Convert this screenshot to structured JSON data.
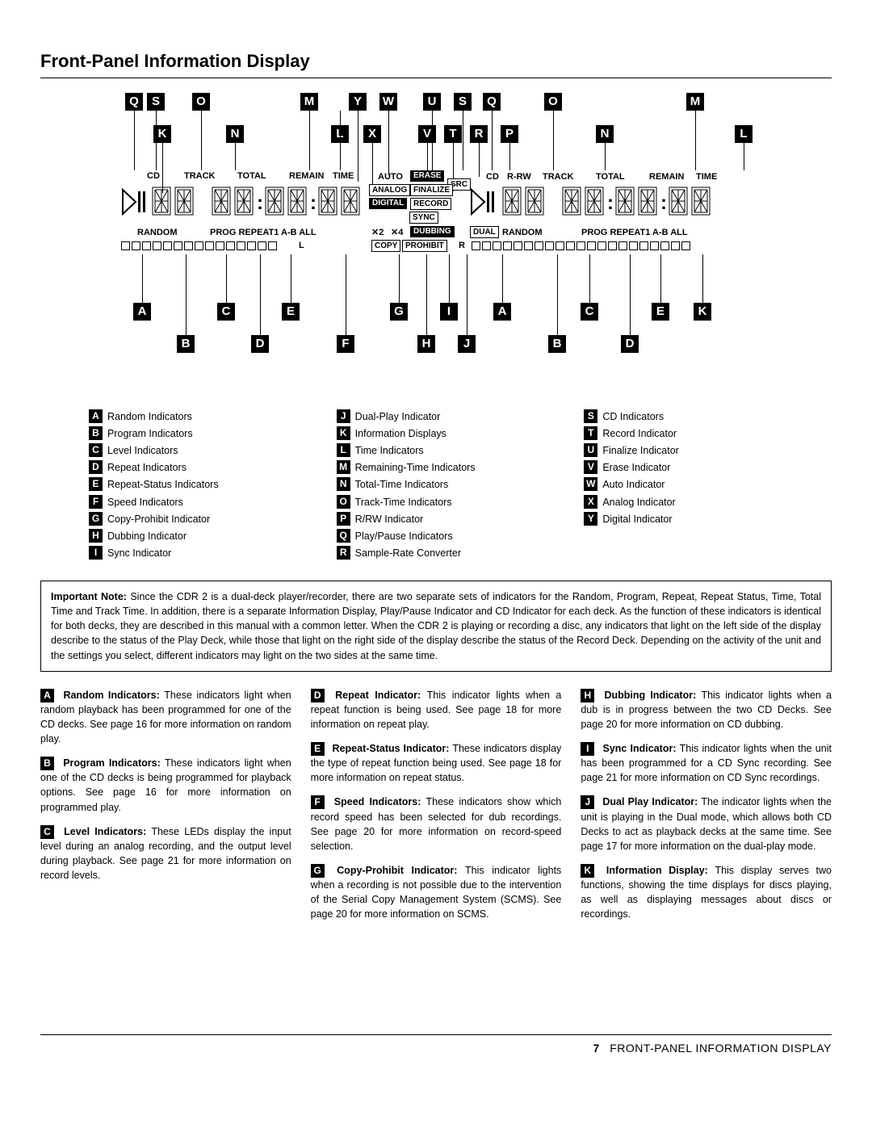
{
  "title": "Front-Panel Information Display",
  "diagram": {
    "top_callouts_left": [
      "Q",
      "S",
      "O",
      "M",
      "Y",
      "W"
    ],
    "top_callouts_right": [
      "U",
      "S",
      "Q",
      "O",
      "M"
    ],
    "mid_callouts_left": [
      "K",
      "N",
      "L",
      "X"
    ],
    "mid_callouts_right": [
      "V",
      "T",
      "R",
      "P",
      "N",
      "L"
    ],
    "bottom_upper_left": [
      "A",
      "C",
      "E",
      "G",
      "I"
    ],
    "bottom_upper_right": [
      "A",
      "C",
      "E",
      "K"
    ],
    "bottom_lower_left": [
      "B",
      "D",
      "F",
      "H",
      "J"
    ],
    "bottom_lower_right": [
      "B",
      "D"
    ],
    "labels_left": [
      "CD",
      "TRACK",
      "TOTAL",
      "REMAIN",
      "TIME"
    ],
    "labels_right": [
      "CD",
      "R-RW",
      "TRACK",
      "TOTAL",
      "REMAIN",
      "TIME"
    ],
    "center_boxes_r1": [
      "AUTO",
      "ERASE"
    ],
    "center_boxes_r2": [
      "ANALOG",
      "FINALIZE"
    ],
    "center_boxes_r3": [
      "DIGITAL",
      "RECORD"
    ],
    "center_boxes_r4": [
      "SYNC"
    ],
    "center_src": "SRC",
    "speed": [
      "✕2",
      "✕4"
    ],
    "dubbing": "DUBBING",
    "dual": "DUAL",
    "copy_prohibit": [
      "COPY",
      "PROHIBIT"
    ],
    "random": "RANDOM",
    "prog_repeat": "PROG REPEAT1 A-B  ALL",
    "level_L": "L",
    "level_R": "R"
  },
  "legend": [
    [
      {
        "l": "A",
        "t": "Random Indicators"
      },
      {
        "l": "B",
        "t": "Program Indicators"
      },
      {
        "l": "C",
        "t": "Level Indicators"
      },
      {
        "l": "D",
        "t": "Repeat Indicators"
      },
      {
        "l": "E",
        "t": "Repeat-Status Indicators"
      },
      {
        "l": "F",
        "t": "Speed Indicators"
      },
      {
        "l": "G",
        "t": "Copy-Prohibit Indicator"
      },
      {
        "l": "H",
        "t": "Dubbing Indicator"
      },
      {
        "l": "I",
        "t": "Sync Indicator"
      }
    ],
    [
      {
        "l": "J",
        "t": "Dual-Play Indicator"
      },
      {
        "l": "K",
        "t": "Information Displays"
      },
      {
        "l": "L",
        "t": "Time Indicators"
      },
      {
        "l": "M",
        "t": "Remaining-Time Indicators"
      },
      {
        "l": "N",
        "t": "Total-Time Indicators"
      },
      {
        "l": "O",
        "t": "Track-Time Indicators"
      },
      {
        "l": "P",
        "t": "R/RW Indicator"
      },
      {
        "l": "Q",
        "t": "Play/Pause Indicators"
      },
      {
        "l": "R",
        "t": "Sample-Rate Converter"
      }
    ],
    [
      {
        "l": "S",
        "t": "CD Indicators"
      },
      {
        "l": "T",
        "t": "Record Indicator"
      },
      {
        "l": "U",
        "t": "Finalize Indicator"
      },
      {
        "l": "V",
        "t": "Erase Indicator"
      },
      {
        "l": "W",
        "t": "Auto Indicator"
      },
      {
        "l": "X",
        "t": "Analog Indicator"
      },
      {
        "l": "Y",
        "t": "Digital Indicator"
      }
    ]
  ],
  "note_label": "Important Note:",
  "note": "Since the CDR 2 is a dual-deck player/recorder, there are two separate sets of indicators for the Random, Program, Repeat, Repeat Status, Time, Total Time and Track Time. In addition, there is a separate Information Display, Play/Pause Indicator and CD Indicator for each deck. As the function of these indicators is identical for both decks, they are described in this manual with a common letter. When the CDR 2 is playing or recording a disc, any indicators that light on the left side of the display describe to the status of the Play Deck, while those that light on the right side of the display describe the status of the Record Deck. Depending on the activity of the unit and the settings you select, different indicators may light on the two sides at the same time.",
  "descriptions": [
    {
      "l": "A",
      "h": "Random Indicators:",
      "t": "These indicators light when random playback has been programmed for one of the CD decks. See page 16 for more information on random play."
    },
    {
      "l": "B",
      "h": "Program Indicators:",
      "t": "These indicators light when one of the CD decks is being programmed for playback options. See page 16 for more information on programmed play."
    },
    {
      "l": "C",
      "h": "Level Indicators:",
      "t": "These LEDs display the input level during an analog recording, and the output level during playback. See page 21 for more information on record levels."
    },
    {
      "l": "D",
      "h": "Repeat Indicator:",
      "t": "This indicator lights when a repeat function is being used. See page 18 for more information on repeat play."
    },
    {
      "l": "E",
      "h": "Repeat-Status Indicator:",
      "t": "These indicators display the type of repeat function being used. See page 18 for more information on repeat status."
    },
    {
      "l": "F",
      "h": "Speed Indicators:",
      "t": "These indicators show which record speed has been selected for dub recordings. See page 20 for more information on record-speed selection."
    },
    {
      "l": "G",
      "h": "Copy-Prohibit Indicator:",
      "t": "This indicator lights when a recording is not possible due to the intervention of the Serial Copy Management System (SCMS). See page 20 for more information on SCMS."
    },
    {
      "l": "H",
      "h": "Dubbing Indicator:",
      "t": "This indicator lights when a dub is in progress between the two CD Decks. See page 20 for more information on CD dubbing."
    },
    {
      "l": "I",
      "h": "Sync Indicator:",
      "t": "This indicator lights when the unit has been programmed for a CD Sync recording. See page 21 for more information on CD Sync recordings."
    },
    {
      "l": "J",
      "h": "Dual Play Indicator:",
      "t": "The indicator lights when the unit is playing in the Dual mode, which allows both CD Decks to act as playback decks at the same time. See page 17 for more information on the dual-play mode."
    },
    {
      "l": "K",
      "h": "Information Display:",
      "t": "This display serves two functions, showing the time displays for discs playing, as well as displaying messages about discs or recordings."
    }
  ],
  "footer": {
    "page": "7",
    "text": "FRONT-PANEL INFORMATION DISPLAY"
  }
}
